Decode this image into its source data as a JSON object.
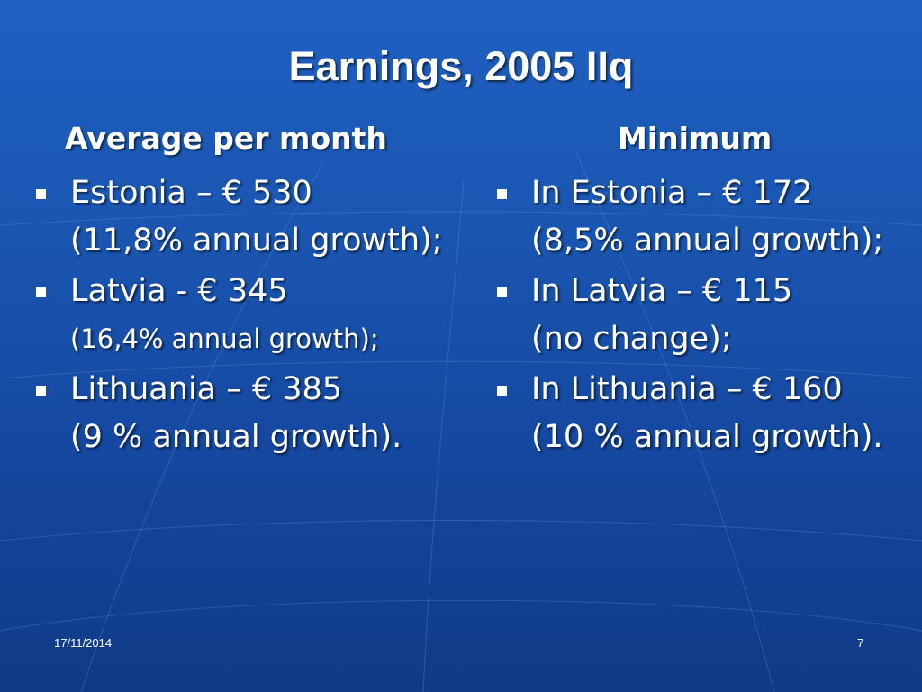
{
  "slide": {
    "title": "Earnings, 2005 IIq",
    "footer": {
      "date": "17/11/2014",
      "page_number": "7"
    },
    "background_color": "#1a55b0"
  },
  "columns": {
    "left": {
      "heading": "Average per month",
      "items": [
        {
          "main": "Estonia – € 530",
          "note": "(11,8% annual growth);"
        },
        {
          "main": "Latvia - € 345",
          "note": "(16,4% annual growth);"
        },
        {
          "main": "Lithuania – € 385",
          "note": "(9 % annual growth)."
        }
      ]
    },
    "right": {
      "heading": "Minimum",
      "items": [
        {
          "main": "In Estonia – € 172",
          "note": "(8,5% annual growth);"
        },
        {
          "main": "In Latvia – € 115",
          "note": "(no change);"
        },
        {
          "main": "In Lithuania – € 160",
          "note": "(10 % annual growth)."
        }
      ]
    }
  }
}
